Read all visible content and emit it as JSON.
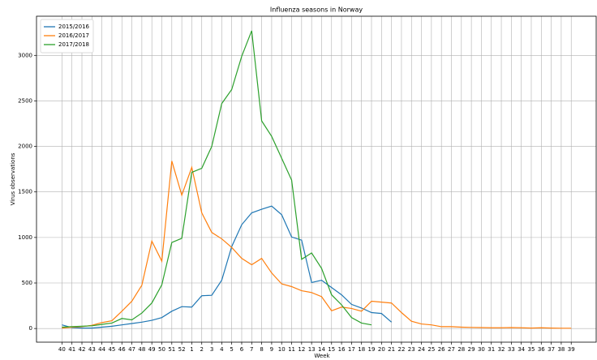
{
  "chart_data": {
    "type": "line",
    "title": "Influenza seasons in Norway",
    "x_label": "Week",
    "y_label": "Virus observations",
    "categories": [
      "40",
      "41",
      "42",
      "43",
      "44",
      "45",
      "46",
      "47",
      "48",
      "49",
      "50",
      "51",
      "52",
      "1",
      "2",
      "3",
      "4",
      "5",
      "6",
      "7",
      "8",
      "9",
      "10",
      "11",
      "12",
      "13",
      "14",
      "15",
      "16",
      "17",
      "18",
      "19",
      "20",
      "21",
      "22",
      "23",
      "24",
      "25",
      "26",
      "27",
      "28",
      "29",
      "30",
      "31",
      "32",
      "33",
      "34",
      "35",
      "36",
      "37",
      "38",
      "39"
    ],
    "series": [
      {
        "name": "2015/2016",
        "color": "#1f77b4",
        "values": [
          40,
          10,
          5,
          5,
          15,
          25,
          40,
          55,
          70,
          90,
          120,
          190,
          240,
          235,
          360,
          365,
          530,
          900,
          1140,
          1270,
          1310,
          1345,
          1250,
          1005,
          970,
          505,
          530,
          450,
          370,
          265,
          225,
          175,
          165,
          70,
          null,
          null,
          null,
          null,
          null,
          null,
          null,
          null,
          null,
          null,
          null,
          null,
          null,
          null,
          null,
          null,
          null,
          null
        ]
      },
      {
        "name": "2016/2017",
        "color": "#ff7f0e",
        "values": [
          5,
          15,
          20,
          35,
          65,
          85,
          190,
          300,
          475,
          960,
          740,
          1840,
          1465,
          1770,
          1270,
          1055,
          985,
          890,
          770,
          700,
          770,
          610,
          490,
          460,
          415,
          395,
          350,
          195,
          235,
          220,
          190,
          300,
          290,
          280,
          175,
          80,
          50,
          40,
          20,
          20,
          15,
          12,
          10,
          8,
          8,
          10,
          8,
          5,
          8,
          5,
          3,
          3
        ]
      },
      {
        "name": "2017/2018",
        "color": "#2ca02c",
        "values": [
          15,
          20,
          25,
          30,
          45,
          60,
          110,
          95,
          170,
          280,
          480,
          945,
          990,
          1715,
          1760,
          2000,
          2470,
          2625,
          2990,
          3270,
          2280,
          2110,
          1870,
          1630,
          760,
          830,
          660,
          370,
          260,
          120,
          60,
          40,
          null,
          null,
          null,
          null,
          null,
          null,
          null,
          null,
          null,
          null,
          null,
          null,
          null,
          null,
          null,
          null,
          null,
          null,
          null,
          null
        ]
      }
    ],
    "ylim": [
      -150,
      3430
    ],
    "yticks": [
      0,
      500,
      1000,
      1500,
      2000,
      2500,
      3000
    ],
    "grid": true,
    "legend": "upper-left"
  }
}
